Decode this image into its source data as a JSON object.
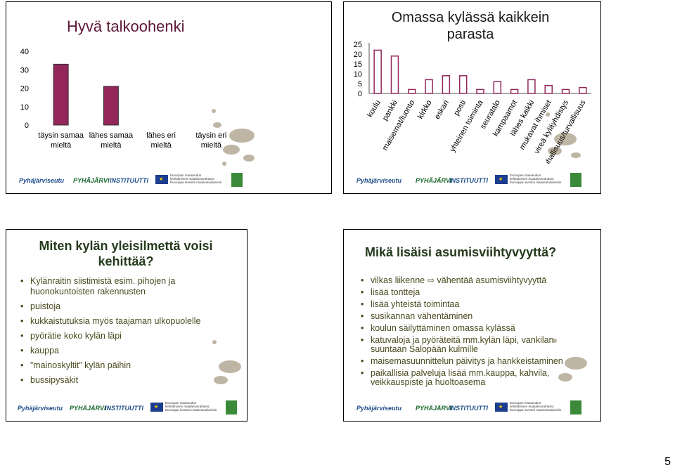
{
  "slide1": {
    "title": "Hyvä talkoohenki",
    "chart_data": {
      "type": "bar",
      "categories": [
        "täysin samaa mieltä",
        "lähes samaa mieltä",
        "lähes eri mieltä",
        "täysin eri mieltä"
      ],
      "category_lines": [
        [
          "täysin samaa",
          "mieltä"
        ],
        [
          "lähes samaa",
          "mieltä"
        ],
        [
          "lähes eri",
          "mieltä"
        ],
        [
          "täysin eri",
          "mieltä"
        ]
      ],
      "values": [
        33,
        21,
        0,
        0
      ],
      "yticks": [
        "0",
        "10",
        "20",
        "30",
        "40"
      ],
      "ylim": [
        0,
        40
      ],
      "bar_color": "#93275a"
    }
  },
  "slide2": {
    "title_line1": "Omassa kylässä kaikkein",
    "title_line2": "parasta",
    "chart_data": {
      "type": "bar",
      "categories": [
        "koulu",
        "pankki",
        "maisemat/luonto",
        "kirkko",
        "eskari",
        "posti",
        "yhteinen toiminta",
        "seuratalo",
        "kampaamot",
        "lähes kaikki",
        "mukavat ihmiset",
        "vireä kyläyhdistys",
        "rauhallisuus/turvallisuus"
      ],
      "values": [
        22,
        19,
        2,
        7,
        9,
        9,
        2,
        6,
        2,
        7,
        4,
        2,
        3
      ],
      "yticks": [
        "0",
        "5",
        "10",
        "15",
        "20",
        "25"
      ],
      "ylim": [
        0,
        25
      ],
      "bar_color": "#ffffff"
    }
  },
  "slide3": {
    "title": "Miten kylän yleisilmettä voisi kehittää?",
    "bullets": [
      "Kylänraitin siistimistä esim. pihojen ja huonokuntoisten rakennusten",
      "puistoja",
      "kukkaistutuksia myös taajaman ulkopuolelle",
      "pyörätie koko kylän läpi",
      "kauppa",
      "”mainoskyltit” kylän päihin",
      "bussipysäkit"
    ]
  },
  "slide4": {
    "title": "Mikä lisäisi asumisviihtyvyyttä?",
    "bullets": [
      "vilkas liikenne ⇨ vähentää asumisviihtyvyyttä",
      "lisää tontteja",
      "lisää yhteistä toimintaa",
      "susikannan vähentäminen",
      "koulun säilyttäminen omassa kylässä",
      "katuvaloja ja pyöräteitä mm.kylän läpi, vankilan suuntaan Salopään kulmille",
      "maisemasuunnittelun päivitys ja hankkeistaminen",
      "paikallisia palveluja lisää mm.kauppa, kahvila, veikkauspiste ja huoltoasema"
    ]
  },
  "footer": {
    "logo1": "Pyhäjärviseutu",
    "logo2": "PYHÄJÄRVI",
    "logo3": "INSTITUUTTI",
    "eu_text_1": "Euroopan maaseudun",
    "eu_text_2": "kehittämisen maatalousrahasto:",
    "eu_text_3": "Eurooppa investoi maaseutualueisiin"
  },
  "page_number": "5"
}
